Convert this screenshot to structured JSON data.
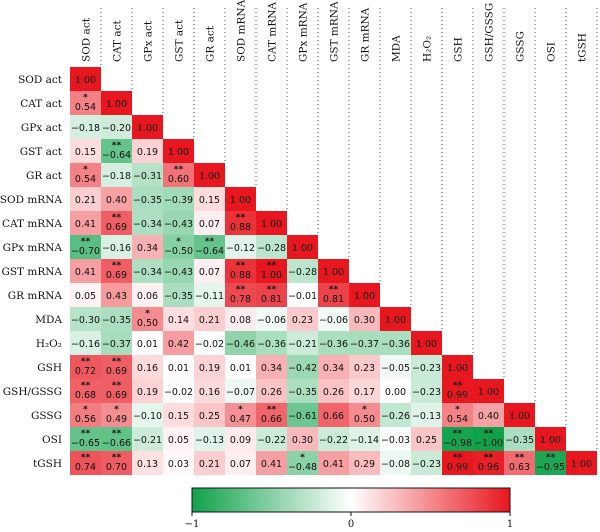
{
  "chart_data": {
    "type": "heatmap",
    "variables": [
      "SOD act",
      "CAT act",
      "GPx act",
      "GST act",
      "GR act",
      "SOD mRNA",
      "CAT mRNA",
      "GPx mRNA",
      "GST mRNA",
      "GR mRNA",
      "MDA",
      "H₂O₂",
      "GSH",
      "GSH/GSSG",
      "GSSG",
      "OSI",
      "tGSH"
    ],
    "values": [
      [
        "1.00"
      ],
      [
        "0.54",
        "1.00"
      ],
      [
        "−0.18",
        "−0.20",
        "1.00"
      ],
      [
        "0.15",
        "−0.64",
        "0.19",
        "1.00"
      ],
      [
        "0.54",
        "−0.18",
        "−0.31",
        "0.60",
        "1.00"
      ],
      [
        "0.21",
        "0.40",
        "−0.35",
        "−0.39",
        "0.15",
        "1.00"
      ],
      [
        "0.41",
        "0.69",
        "−0.34",
        "−0.43",
        "0.07",
        "0.88",
        "1.00"
      ],
      [
        "−0.70",
        "−0.16",
        "0.34",
        "−0.50",
        "−0.64",
        "−0.12",
        "−0.28",
        "1.00"
      ],
      [
        "0.41",
        "0.69",
        "−0.34",
        "−0.43",
        "0.07",
        "0.88",
        "1.00",
        "−0.28",
        "1.00"
      ],
      [
        "0.05",
        "0.43",
        "0.06",
        "−0.35",
        "−0.11",
        "0.78",
        "0.81",
        "−0.01",
        "0.81",
        "1.00"
      ],
      [
        "−0.30",
        "−0.35",
        "0.50",
        "0.14",
        "0.21",
        "0.08",
        "−0.06",
        "0.23",
        "−0.06",
        "0.30",
        "1.00"
      ],
      [
        "−0.16",
        "−0.37",
        "0.01",
        "0.42",
        "−0.02",
        "−0.46",
        "−0.36",
        "−0.21",
        "−0.36",
        "−0.37",
        "−0.36",
        "1.00"
      ],
      [
        "0.72",
        "0.69",
        "0.16",
        "0.01",
        "0.19",
        "0.01",
        "0.34",
        "−0.42",
        "0.34",
        "0.23",
        "−0.05",
        "−0.23",
        "1.00"
      ],
      [
        "0.68",
        "0.69",
        "0.19",
        "−0.02",
        "0.16",
        "−0.07",
        "0.26",
        "−0.35",
        "0.26",
        "0.17",
        "0.00",
        "−0.23",
        "0.99",
        "1.00"
      ],
      [
        "0.56",
        "0.49",
        "−0.10",
        "0.15",
        "0.25",
        "0.47",
        "0.66",
        "−0.61",
        "0.66",
        "0.50",
        "−0.26",
        "−0.13",
        "0.54",
        "0.40",
        "1.00"
      ],
      [
        "−0.65",
        "−0.66",
        "−0.21",
        "0.05",
        "−0.13",
        "0.09",
        "−0.22",
        "0.30",
        "−0.22",
        "−0.14",
        "−0.03",
        "0.25",
        "−0.98",
        "−1.00",
        "−0.35",
        "1.00"
      ],
      [
        "0.74",
        "0.70",
        "0.13",
        "0.03",
        "0.21",
        "0.07",
        "0.41",
        "−0.48",
        "0.41",
        "0.29",
        "−0.08",
        "−0.23",
        "0.99",
        "0.96",
        "0.63",
        "−0.95",
        "1.00"
      ]
    ],
    "significance": [
      [
        ""
      ],
      [
        "*",
        ""
      ],
      [
        "",
        "",
        ""
      ],
      [
        "",
        "**",
        "",
        ""
      ],
      [
        "*",
        "",
        "",
        "**",
        ""
      ],
      [
        "",
        "",
        "",
        "",
        "",
        ""
      ],
      [
        "",
        "**",
        "",
        "",
        "",
        "**",
        ""
      ],
      [
        "**",
        "",
        "",
        "*",
        "**",
        "",
        "",
        ""
      ],
      [
        "",
        "**",
        "",
        "",
        "",
        "**",
        "**",
        "",
        ""
      ],
      [
        "",
        "",
        "",
        "",
        "",
        "**",
        "**",
        "",
        "**",
        ""
      ],
      [
        "",
        "",
        "*",
        "",
        "",
        "",
        "",
        "",
        "",
        "",
        ""
      ],
      [
        "",
        "",
        "",
        "",
        "",
        "",
        "",
        "",
        "",
        "",
        "",
        ""
      ],
      [
        "**",
        "**",
        "",
        "",
        "",
        "",
        "",
        "",
        "",
        "",
        "",
        "",
        ""
      ],
      [
        "**",
        "**",
        "",
        "",
        "",
        "",
        "",
        "",
        "",
        "",
        "",
        "",
        "**",
        ""
      ],
      [
        "*",
        "*",
        "",
        "",
        "",
        "*",
        "**",
        "",
        "",
        "*",
        "",
        "",
        "*",
        "",
        ""
      ],
      [
        "**",
        "**",
        "",
        "",
        "",
        "",
        "",
        "",
        "",
        "",
        "",
        "",
        "**",
        "**",
        "",
        ""
      ],
      [
        "**",
        "**",
        "",
        "",
        "",
        "",
        "",
        "*",
        "",
        "",
        "",
        "",
        "**",
        "**",
        "**",
        "**",
        ""
      ]
    ],
    "color_scale": {
      "min": -1,
      "mid": 0,
      "max": 1,
      "ticks": [
        "−1",
        "0",
        "1"
      ],
      "colors": {
        "negative": "#10a24b",
        "mid": "#ffffff",
        "positive": "#e8161e"
      }
    },
    "legend_position": "bottom"
  }
}
